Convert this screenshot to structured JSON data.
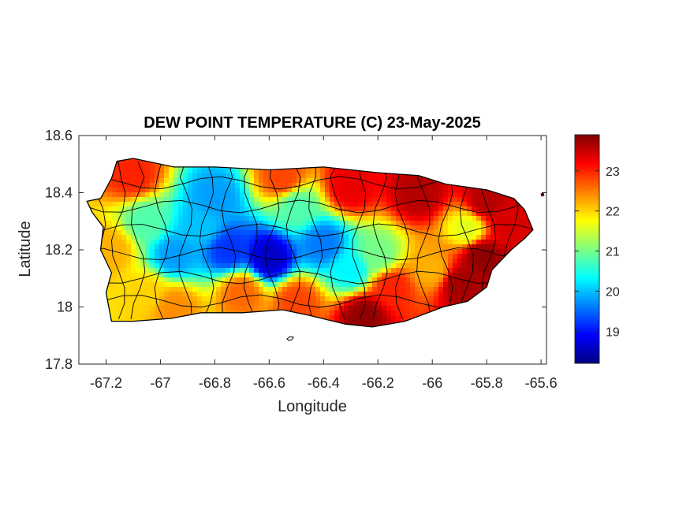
{
  "chart_data": {
    "type": "heatmap",
    "title": "DEW POINT TEMPERATURE (C) 23-May-2025",
    "xlabel": "Longitude",
    "ylabel": "Latitude",
    "xlim": [
      -67.3,
      -65.58
    ],
    "ylim": [
      17.8,
      18.6
    ],
    "x_ticks": [
      -67.2,
      -67,
      -66.8,
      -66.6,
      -66.4,
      -66.2,
      -66,
      -65.8,
      -65.6
    ],
    "x_tick_labels": [
      "-67.2",
      "-67",
      "-66.8",
      "-66.6",
      "-66.4",
      "-66.2",
      "-66",
      "-65.8",
      "-65.6"
    ],
    "y_ticks": [
      17.8,
      18,
      18.2,
      18.4,
      18.6
    ],
    "y_tick_labels": [
      "17.8",
      "18",
      "18.2",
      "18.4",
      "18.6"
    ],
    "colormap": "jet",
    "colorbar": {
      "range": [
        18.2,
        23.9
      ],
      "ticks": [
        19,
        20,
        21,
        22,
        23
      ],
      "tick_labels": [
        "19",
        "20",
        "21",
        "22",
        "23"
      ]
    },
    "colors": {
      "jet": [
        "#00007f",
        "#0000ff",
        "#007fff",
        "#00ffff",
        "#7fff7f",
        "#ffff00",
        "#ff7f00",
        "#ff0000",
        "#7f0000"
      ],
      "boundary": "#000000",
      "axes": "#262626"
    },
    "grid": false,
    "outline": [
      [
        -67.27,
        18.37
      ],
      [
        -67.22,
        18.38
      ],
      [
        -67.18,
        18.45
      ],
      [
        -67.16,
        18.51
      ],
      [
        -67.1,
        18.52
      ],
      [
        -66.95,
        18.49
      ],
      [
        -66.8,
        18.49
      ],
      [
        -66.6,
        18.48
      ],
      [
        -66.4,
        18.49
      ],
      [
        -66.2,
        18.47
      ],
      [
        -66.05,
        18.46
      ],
      [
        -65.95,
        18.43
      ],
      [
        -65.8,
        18.41
      ],
      [
        -65.7,
        18.38
      ],
      [
        -65.66,
        18.34
      ],
      [
        -65.63,
        18.27
      ],
      [
        -65.66,
        18.24
      ],
      [
        -65.71,
        18.2
      ],
      [
        -65.78,
        18.13
      ],
      [
        -65.8,
        18.07
      ],
      [
        -65.87,
        18.02
      ],
      [
        -65.96,
        18.0
      ],
      [
        -66.1,
        17.95
      ],
      [
        -66.22,
        17.93
      ],
      [
        -66.32,
        17.94
      ],
      [
        -66.45,
        17.97
      ],
      [
        -66.55,
        17.99
      ],
      [
        -66.7,
        17.98
      ],
      [
        -66.85,
        17.98
      ],
      [
        -66.96,
        17.96
      ],
      [
        -67.1,
        17.95
      ],
      [
        -67.18,
        17.95
      ],
      [
        -67.2,
        18.05
      ],
      [
        -67.18,
        18.12
      ],
      [
        -67.22,
        18.2
      ],
      [
        -67.21,
        18.28
      ],
      [
        -67.25,
        18.33
      ]
    ],
    "field_points": [
      {
        "lon": -66.8,
        "lat": 18.38,
        "value": 19.8
      },
      {
        "lon": -66.75,
        "lat": 18.2,
        "value": 19.2
      },
      {
        "lon": -66.6,
        "lat": 18.17,
        "value": 18.6
      },
      {
        "lon": -66.4,
        "lat": 18.22,
        "value": 19.6
      },
      {
        "lon": -66.95,
        "lat": 18.18,
        "value": 19.8
      },
      {
        "lon": -66.85,
        "lat": 18.28,
        "value": 20.0
      },
      {
        "lon": -66.3,
        "lat": 18.13,
        "value": 20.3
      },
      {
        "lon": -67.05,
        "lat": 18.3,
        "value": 20.8
      },
      {
        "lon": -66.5,
        "lat": 18.35,
        "value": 20.8
      },
      {
        "lon": -66.2,
        "lat": 18.18,
        "value": 21.0
      },
      {
        "lon": -65.87,
        "lat": 18.27,
        "value": 21.6
      },
      {
        "lon": -66.0,
        "lat": 18.13,
        "value": 22.2
      },
      {
        "lon": -67.05,
        "lat": 18.05,
        "value": 22.0
      },
      {
        "lon": -67.18,
        "lat": 18.2,
        "value": 22.2
      },
      {
        "lon": -67.1,
        "lat": 18.46,
        "value": 23.0
      },
      {
        "lon": -66.55,
        "lat": 18.45,
        "value": 22.8
      },
      {
        "lon": -66.3,
        "lat": 18.42,
        "value": 23.3
      },
      {
        "lon": -66.05,
        "lat": 18.4,
        "value": 23.6
      },
      {
        "lon": -65.8,
        "lat": 18.37,
        "value": 23.6
      },
      {
        "lon": -65.72,
        "lat": 18.3,
        "value": 23.4
      },
      {
        "lon": -65.82,
        "lat": 18.18,
        "value": 23.8
      },
      {
        "lon": -65.9,
        "lat": 18.08,
        "value": 23.7
      },
      {
        "lon": -66.15,
        "lat": 18.07,
        "value": 23.0
      },
      {
        "lon": -66.25,
        "lat": 17.97,
        "value": 23.8
      },
      {
        "lon": -66.5,
        "lat": 18.02,
        "value": 22.8
      },
      {
        "lon": -66.7,
        "lat": 18.05,
        "value": 22.6
      },
      {
        "lon": -66.95,
        "lat": 18.0,
        "value": 22.4
      }
    ]
  }
}
